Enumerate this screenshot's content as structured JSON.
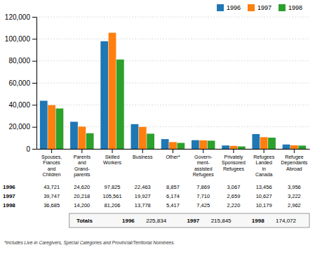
{
  "chart_data": {
    "type": "bar",
    "categories": [
      "Spouses,\nFiancés\nand\nChildren",
      "Parents\nand\nGrand-\nparents",
      "Skilled\nWorkers",
      "Business",
      "Other*",
      "Govern-\nment-\nassisted\nRefugees",
      "Privately\nSponsored\nRefugees",
      "Refugees\nLanded\nin\nCanada",
      "Refugee\nDependants\nAbroad"
    ],
    "series": [
      {
        "name": "1996",
        "values": [
          43721,
          24620,
          97825,
          22463,
          8857,
          7869,
          3067,
          13456,
          3956
        ],
        "value_labels": [
          "43,721",
          "24,620",
          "97,825",
          "22,463",
          "8,857",
          "7,869",
          "3,067",
          "13,456",
          "3,956"
        ]
      },
      {
        "name": "1997",
        "values": [
          39747,
          20218,
          105561,
          19927,
          6174,
          7710,
          2659,
          10627,
          3222
        ],
        "value_labels": [
          "39,747",
          "20,218",
          "105,561",
          "19,927",
          "6,174",
          "7,710",
          "2,659",
          "10,627",
          "3,222"
        ]
      },
      {
        "name": "1998",
        "values": [
          36685,
          14200,
          81206,
          13778,
          5417,
          7425,
          2220,
          10179,
          2962
        ],
        "value_labels": [
          "36,685",
          "14,200",
          "81,206",
          "13,778",
          "5,417",
          "7,425",
          "2,220",
          "10,179",
          "2,962"
        ]
      }
    ],
    "ylim": [
      0,
      120000
    ],
    "yticks": [
      0,
      {
        "value": 20000,
        "label": "20,000"
      },
      {
        "value": 40000,
        "label": "40,000"
      },
      {
        "value": 60000,
        "label": "60,000"
      },
      {
        "value": 80000,
        "label": "80,000"
      },
      {
        "value": 100000,
        "label": "100,000"
      },
      {
        "value": 120000,
        "label": "120,000"
      }
    ],
    "grid": true,
    "legend": "upper right",
    "totals": {
      "label": "Totals",
      "values": [
        225834,
        215845,
        174072
      ],
      "value_labels": [
        "225,834",
        "215,845",
        "174,072"
      ]
    },
    "footnote": "*Includes Live-in Caregivers, Special Categories and Provincial/Territorial Nominees."
  }
}
